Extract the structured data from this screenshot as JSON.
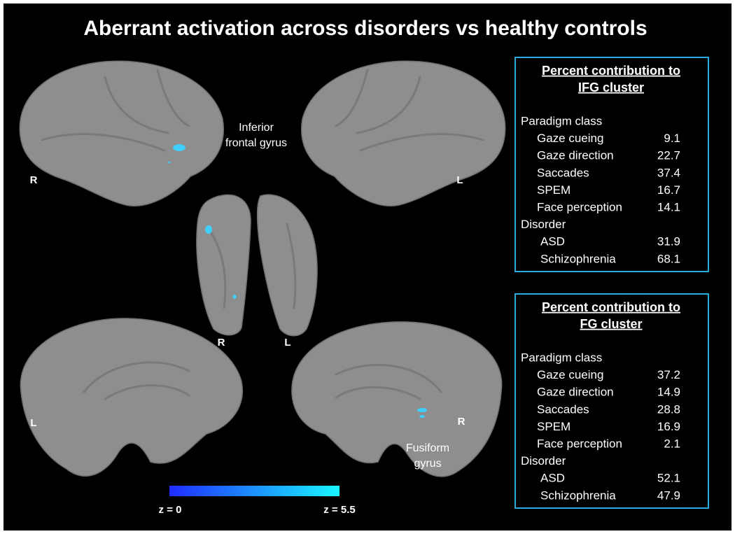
{
  "title": "Aberrant activation across disorders vs healthy controls",
  "hemisphere_labels": [
    "R",
    "L",
    "R",
    "L",
    "L",
    "R"
  ],
  "annotations": {
    "ifg": [
      "Inferior",
      "frontal gyrus"
    ],
    "fg": [
      "Fusiform",
      "gyrus"
    ]
  },
  "colorbar": {
    "min_label": "z = 0",
    "max_label": "z = 5.5"
  },
  "tables": [
    {
      "heading": [
        "Percent contribution to",
        "IFG cluster"
      ],
      "sections": [
        {
          "name": "Paradigm class",
          "rows": [
            [
              "Gaze cueing",
              9.1
            ],
            [
              "Gaze direction",
              22.7
            ],
            [
              "Saccades",
              37.4
            ],
            [
              "SPEM",
              16.7
            ],
            [
              "Face perception",
              14.1
            ]
          ]
        },
        {
          "name": "Disorder",
          "rows": [
            [
              "ASD",
              31.9
            ],
            [
              "Schizophrenia",
              68.1
            ]
          ]
        }
      ]
    },
    {
      "heading": [
        "Percent contribution to",
        "FG cluster"
      ],
      "sections": [
        {
          "name": "Paradigm class",
          "rows": [
            [
              "Gaze cueing",
              37.2
            ],
            [
              "Gaze direction",
              14.9
            ],
            [
              "Saccades",
              28.8
            ],
            [
              "SPEM",
              16.9
            ],
            [
              "Face perception",
              2.1
            ]
          ]
        },
        {
          "name": "Disorder",
          "rows": [
            [
              "ASD",
              52.1
            ],
            [
              "Schizophrenia",
              47.9
            ]
          ]
        }
      ]
    }
  ]
}
